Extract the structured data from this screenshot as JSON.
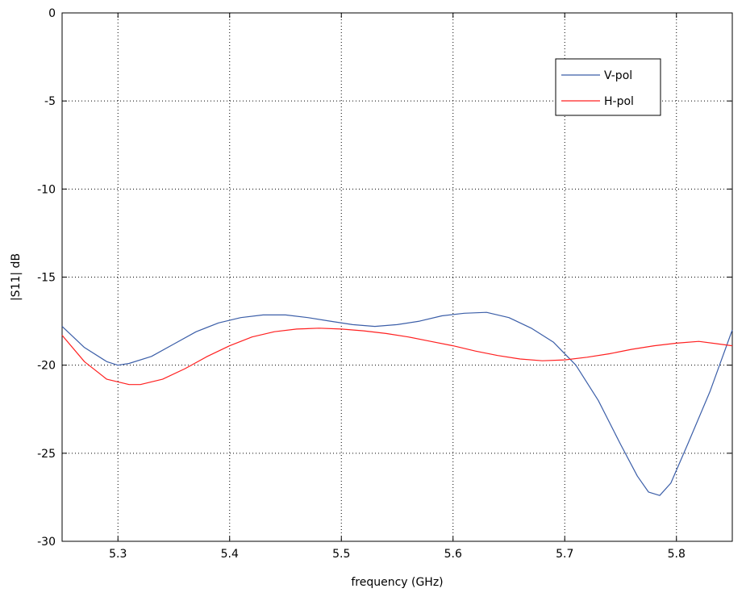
{
  "chart_data": {
    "type": "line",
    "xlabel": "frequency (GHz)",
    "ylabel": "|S11| dB",
    "xlim": [
      5.25,
      5.85
    ],
    "ylim": [
      -30,
      0
    ],
    "x_ticks": [
      "5.3",
      "5.4",
      "5.5",
      "5.6",
      "5.7",
      "5.8"
    ],
    "y_ticks": [
      "0",
      "-5",
      "-10",
      "-15",
      "-20",
      "-25",
      "-30"
    ],
    "grid": true,
    "legend_position": "top-right",
    "series": [
      {
        "name": "V-pol",
        "color": "#3b5ea8",
        "x": [
          5.25,
          5.27,
          5.29,
          5.3,
          5.31,
          5.33,
          5.35,
          5.37,
          5.39,
          5.41,
          5.43,
          5.45,
          5.47,
          5.49,
          5.51,
          5.53,
          5.55,
          5.57,
          5.59,
          5.61,
          5.63,
          5.65,
          5.67,
          5.69,
          5.71,
          5.73,
          5.75,
          5.765,
          5.775,
          5.785,
          5.795,
          5.81,
          5.83,
          5.85
        ],
        "y": [
          -17.8,
          -19.0,
          -19.8,
          -20.0,
          -19.9,
          -19.5,
          -18.8,
          -18.1,
          -17.6,
          -17.3,
          -17.15,
          -17.15,
          -17.3,
          -17.5,
          -17.7,
          -17.8,
          -17.7,
          -17.5,
          -17.2,
          -17.05,
          -17.0,
          -17.3,
          -17.9,
          -18.7,
          -20.0,
          -22.0,
          -24.5,
          -26.3,
          -27.2,
          -27.4,
          -26.7,
          -24.5,
          -21.5,
          -18.0
        ]
      },
      {
        "name": "H-pol",
        "color": "#ff2020",
        "x": [
          5.25,
          5.27,
          5.29,
          5.31,
          5.32,
          5.34,
          5.36,
          5.38,
          5.4,
          5.42,
          5.44,
          5.46,
          5.48,
          5.5,
          5.52,
          5.54,
          5.56,
          5.58,
          5.6,
          5.62,
          5.64,
          5.66,
          5.68,
          5.7,
          5.72,
          5.74,
          5.76,
          5.78,
          5.8,
          5.82,
          5.85
        ],
        "y": [
          -18.3,
          -19.8,
          -20.8,
          -21.1,
          -21.1,
          -20.8,
          -20.2,
          -19.5,
          -18.9,
          -18.4,
          -18.1,
          -17.95,
          -17.9,
          -17.95,
          -18.05,
          -18.2,
          -18.4,
          -18.65,
          -18.9,
          -19.2,
          -19.45,
          -19.65,
          -19.75,
          -19.7,
          -19.55,
          -19.35,
          -19.1,
          -18.9,
          -18.75,
          -18.65,
          -18.9
        ]
      }
    ]
  }
}
